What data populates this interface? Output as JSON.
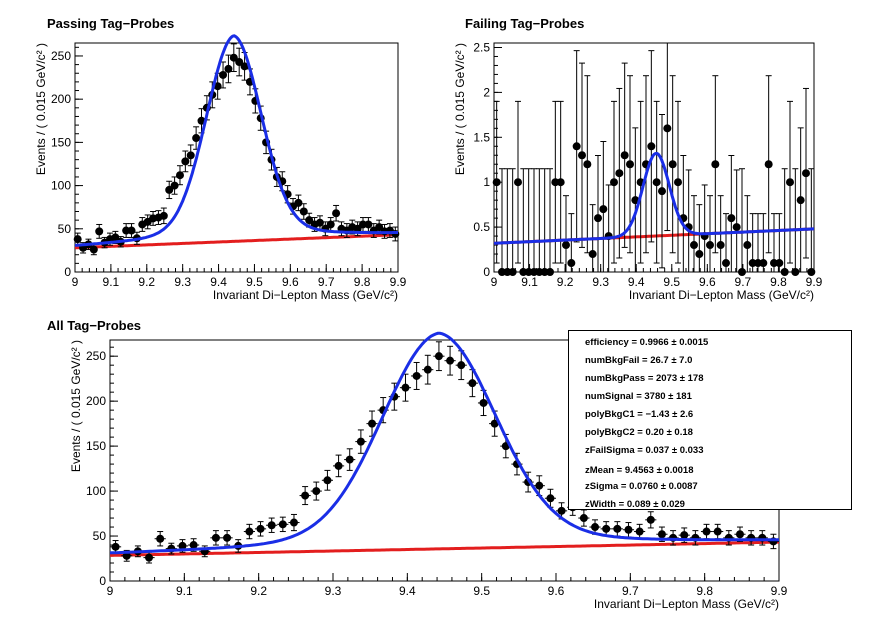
{
  "chart_data": [
    {
      "type": "scatter",
      "title": "Passing Tag−Probes",
      "xlabel": "Invariant Di−Lepton Mass (GeV/c²)",
      "ylabel": "Events / ( 0.015 GeV/c² )",
      "xlim": [
        9,
        9.9
      ],
      "ylim": [
        0,
        265
      ],
      "x_ticks": [
        "9",
        "9.1",
        "9.2",
        "9.3",
        "9.4",
        "9.5",
        "9.6",
        "9.7",
        "9.8",
        "9.9"
      ],
      "y_ticks": [
        "0",
        "50",
        "100",
        "150",
        "200",
        "250"
      ],
      "series": [
        {
          "role": "data",
          "x": [
            9.0075,
            9.0225,
            9.0375,
            9.0525,
            9.0675,
            9.0825,
            9.0975,
            9.1125,
            9.1275,
            9.1425,
            9.1575,
            9.1725,
            9.1875,
            9.2025,
            9.2175,
            9.2325,
            9.2475,
            9.2625,
            9.2775,
            9.2925,
            9.3075,
            9.3225,
            9.3375,
            9.3525,
            9.3675,
            9.3825,
            9.3975,
            9.4125,
            9.4275,
            9.4425,
            9.4575,
            9.4725,
            9.4875,
            9.5025,
            9.5175,
            9.5325,
            9.5475,
            9.5625,
            9.5775,
            9.5925,
            9.6075,
            9.6225,
            9.6375,
            9.6525,
            9.6675,
            9.6825,
            9.6975,
            9.7125,
            9.7275,
            9.7425,
            9.7575,
            9.7725,
            9.7875,
            9.8025,
            9.8175,
            9.8325,
            9.8475,
            9.8625,
            9.8775,
            9.8925
          ],
          "y": [
            38,
            28,
            32,
            26,
            47,
            34,
            38,
            40,
            35,
            48,
            48,
            39,
            55,
            58,
            62,
            63,
            65,
            95,
            100,
            112,
            128,
            135,
            155,
            175,
            190,
            205,
            215,
            228,
            235,
            248,
            243,
            238,
            220,
            198,
            178,
            150,
            130,
            110,
            105,
            90,
            76,
            80,
            70,
            60,
            55,
            57,
            50,
            55,
            68,
            50,
            48,
            52,
            50,
            55,
            55,
            48,
            52,
            47,
            48,
            44
          ],
          "err": [
            7,
            6,
            6,
            6,
            8,
            6,
            7,
            7,
            6,
            8,
            8,
            7,
            8,
            8,
            8,
            8,
            9,
            10,
            10,
            11,
            12,
            12,
            13,
            14,
            14,
            15,
            15,
            15,
            16,
            16,
            16,
            16,
            15,
            14,
            14,
            13,
            12,
            11,
            11,
            10,
            9,
            9,
            9,
            8,
            8,
            8,
            8,
            8,
            9,
            8,
            8,
            8,
            8,
            8,
            8,
            8,
            8,
            8,
            8,
            8
          ]
        },
        {
          "role": "fit",
          "color": "#1a2ee6"
        },
        {
          "role": "background",
          "color": "#e31e1e"
        }
      ]
    },
    {
      "type": "scatter",
      "title": "Failing Tag−Probes",
      "xlabel": "Invariant Di−Lepton Mass (GeV/c²)",
      "ylabel": "Events / ( 0.015 GeV/c² )",
      "xlim": [
        9,
        9.9
      ],
      "ylim": [
        0,
        2.55
      ],
      "x_ticks": [
        "9",
        "9.1",
        "9.2",
        "9.3",
        "9.4",
        "9.5",
        "9.6",
        "9.7",
        "9.8",
        "9.9"
      ],
      "y_ticks": [
        "0",
        "0.5",
        "1",
        "1.5",
        "2",
        "2.5"
      ],
      "series": [
        {
          "role": "data",
          "x": [
            9.0075,
            9.0225,
            9.0375,
            9.0525,
            9.0675,
            9.0825,
            9.0975,
            9.1125,
            9.1275,
            9.1425,
            9.1575,
            9.1725,
            9.1875,
            9.2025,
            9.2175,
            9.2325,
            9.2475,
            9.2625,
            9.2775,
            9.2925,
            9.3075,
            9.3225,
            9.3375,
            9.3525,
            9.3675,
            9.3825,
            9.3975,
            9.4125,
            9.4275,
            9.4425,
            9.4575,
            9.4725,
            9.4875,
            9.5025,
            9.5175,
            9.5325,
            9.5475,
            9.5625,
            9.5775,
            9.5925,
            9.6075,
            9.6225,
            9.6375,
            9.6525,
            9.6675,
            9.6825,
            9.6975,
            9.7125,
            9.7275,
            9.7425,
            9.7575,
            9.7725,
            9.7875,
            9.8025,
            9.8175,
            9.8325,
            9.8475,
            9.8625,
            9.8775,
            9.8925
          ],
          "y": [
            1,
            0,
            0,
            0,
            1,
            0,
            0,
            0,
            0,
            0,
            0,
            1,
            1,
            0.3,
            0.1,
            1.4,
            1.3,
            1.2,
            0.2,
            0.6,
            0.7,
            0.4,
            1,
            1.1,
            1.3,
            1.2,
            0.8,
            1,
            1.2,
            1.4,
            1,
            0.9,
            1.6,
            1.2,
            1,
            0.6,
            0.5,
            0.3,
            0.2,
            0.4,
            0.3,
            1.2,
            0.3,
            0.1,
            0.6,
            0.5,
            0,
            0.3,
            0.1,
            0.1,
            0.1,
            1.2,
            0.1,
            0.1,
            0,
            1,
            0,
            0.8,
            1.1,
            0
          ]
        },
        {
          "role": "fit",
          "color": "#1a2ee6"
        },
        {
          "role": "background",
          "color": "#e31e1e"
        }
      ]
    },
    {
      "type": "scatter",
      "title": "All Tag−Probes",
      "xlabel": "Invariant Di−Lepton Mass (GeV/c²)",
      "ylabel": "Events / ( 0.015 GeV/c² )",
      "xlim": [
        9,
        9.9
      ],
      "ylim": [
        0,
        268
      ],
      "x_ticks": [
        "9",
        "9.1",
        "9.2",
        "9.3",
        "9.4",
        "9.5",
        "9.6",
        "9.7",
        "9.8",
        "9.9"
      ],
      "y_ticks": [
        "0",
        "50",
        "100",
        "150",
        "200",
        "250"
      ],
      "series": [
        {
          "role": "data",
          "x": [
            9.0075,
            9.0225,
            9.0375,
            9.0525,
            9.0675,
            9.0825,
            9.0975,
            9.1125,
            9.1275,
            9.1425,
            9.1575,
            9.1725,
            9.1875,
            9.2025,
            9.2175,
            9.2325,
            9.2475,
            9.2625,
            9.2775,
            9.2925,
            9.3075,
            9.3225,
            9.3375,
            9.3525,
            9.3675,
            9.3825,
            9.3975,
            9.4125,
            9.4275,
            9.4425,
            9.4575,
            9.4725,
            9.4875,
            9.5025,
            9.5175,
            9.5325,
            9.5475,
            9.5625,
            9.5775,
            9.5925,
            9.6075,
            9.6225,
            9.6375,
            9.6525,
            9.6675,
            9.6825,
            9.6975,
            9.7125,
            9.7275,
            9.7425,
            9.7575,
            9.7725,
            9.7875,
            9.8025,
            9.8175,
            9.8325,
            9.8475,
            9.8625,
            9.8775,
            9.8925
          ],
          "y": [
            38,
            28,
            33,
            26,
            47,
            36,
            39,
            40,
            33,
            48,
            48,
            39,
            55,
            58,
            62,
            63,
            65,
            95,
            100,
            112,
            128,
            135,
            155,
            175,
            190,
            205,
            215,
            228,
            235,
            250,
            245,
            240,
            220,
            198,
            175,
            150,
            130,
            110,
            106,
            92,
            78,
            82,
            70,
            60,
            58,
            58,
            57,
            55,
            68,
            52,
            48,
            51,
            48,
            55,
            55,
            48,
            52,
            48,
            48,
            44
          ],
          "err": [
            7,
            6,
            6,
            6,
            8,
            6,
            7,
            7,
            6,
            8,
            8,
            7,
            8,
            8,
            8,
            8,
            9,
            10,
            10,
            11,
            12,
            12,
            13,
            14,
            14,
            15,
            15,
            15,
            16,
            16,
            16,
            16,
            15,
            14,
            14,
            13,
            12,
            11,
            11,
            10,
            9,
            9,
            9,
            8,
            8,
            8,
            8,
            8,
            9,
            8,
            8,
            8,
            8,
            8,
            8,
            8,
            8,
            8,
            8,
            8
          ]
        },
        {
          "role": "fit",
          "color": "#1a2ee6"
        },
        {
          "role": "background",
          "color": "#e31e1e"
        }
      ],
      "stats_box": [
        {
          "label": "efficiency =",
          "value": "0.9966 ± 0.0015"
        },
        {
          "label": "numBkgFail =",
          "value": "26.7 ± 7.0"
        },
        {
          "label": "numBkgPass =",
          "value": "2073 ± 178"
        },
        {
          "label": "numSignal =",
          "value": "3780 ± 181"
        },
        {
          "label": "polyBkgC1 =",
          "value": "−1.43 ± 2.6"
        },
        {
          "label": "polyBkgC2 =",
          "value": "0.20 ± 0.18"
        },
        {
          "label": "zFailSigma =",
          "value": "0.037 ± 0.033"
        },
        {
          "label": "zMean =",
          "value": "9.4563 ± 0.0018"
        },
        {
          "label": "zSigma =",
          "value": "0.0760 ± 0.0087"
        },
        {
          "label": "zWidth =",
          "value": "0.089 ± 0.029"
        }
      ]
    }
  ]
}
